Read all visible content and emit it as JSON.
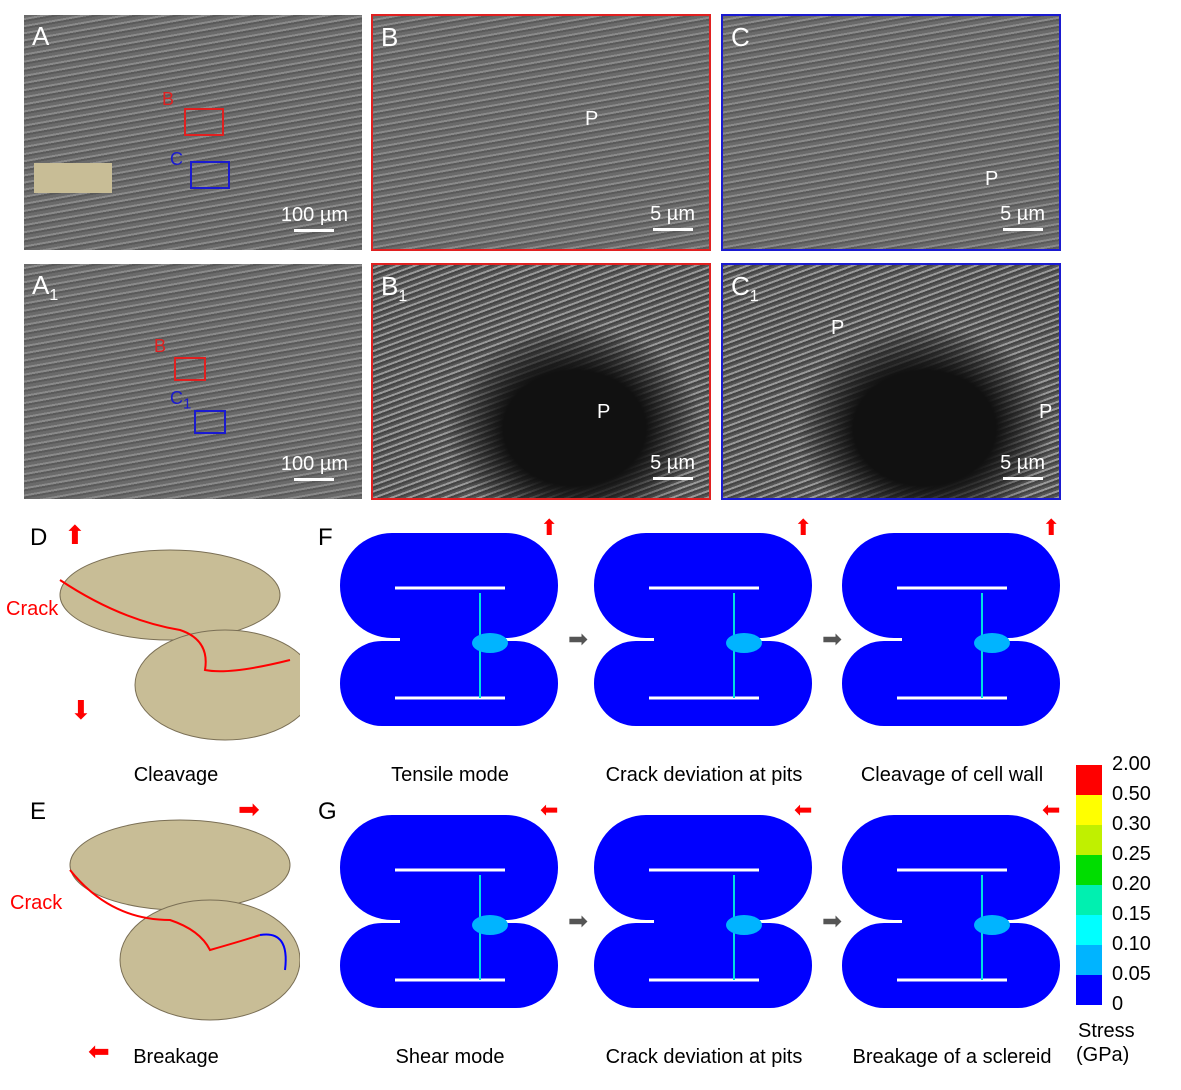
{
  "panels": {
    "A": {
      "label": "A",
      "scale": "100 µm",
      "box_b": "B",
      "box_c": "C"
    },
    "B": {
      "label": "B",
      "scale": "5 µm",
      "pit": "P"
    },
    "C": {
      "label": "C",
      "scale": "5 µm",
      "pit": "P"
    },
    "A1": {
      "label": "A",
      "sub": "1",
      "scale": "100 µm",
      "box_b": "B",
      "box_c": "C",
      "box_c_sub": "1"
    },
    "B1": {
      "label": "B",
      "sub": "1",
      "scale": "5 µm",
      "pit": "P"
    },
    "C1": {
      "label": "C",
      "sub": "1",
      "scale": "5 µm",
      "pit1": "P",
      "pit2": "P"
    },
    "D": {
      "label": "D",
      "crack": "Crack",
      "caption": "Cleavage"
    },
    "E": {
      "label": "E",
      "crack": "Crack",
      "caption": "Breakage"
    },
    "F": {
      "label": "F",
      "captions": [
        "Tensile mode",
        "Crack deviation at pits",
        "Cleavage of cell wall"
      ]
    },
    "G": {
      "label": "G",
      "captions": [
        "Shear mode",
        "Crack deviation at pits",
        "Breakage of a sclereid"
      ]
    }
  },
  "colorbar": {
    "title": "Stress",
    "unit": "(GPa)",
    "labels": [
      "2.00",
      "0.50",
      "0.30",
      "0.25",
      "0.20",
      "0.15",
      "0.10",
      "0.05",
      "0"
    ],
    "colors": [
      "#ff0000",
      "#ffff00",
      "#c0f000",
      "#00dd00",
      "#00f0b0",
      "#00ffff",
      "#00b4ff",
      "#0000ff"
    ]
  },
  "colors": {
    "red_frame": "#e02020",
    "blue_frame": "#1a1ad0",
    "model_blue": "#0000ff",
    "arrow_red": "#ff0000"
  }
}
